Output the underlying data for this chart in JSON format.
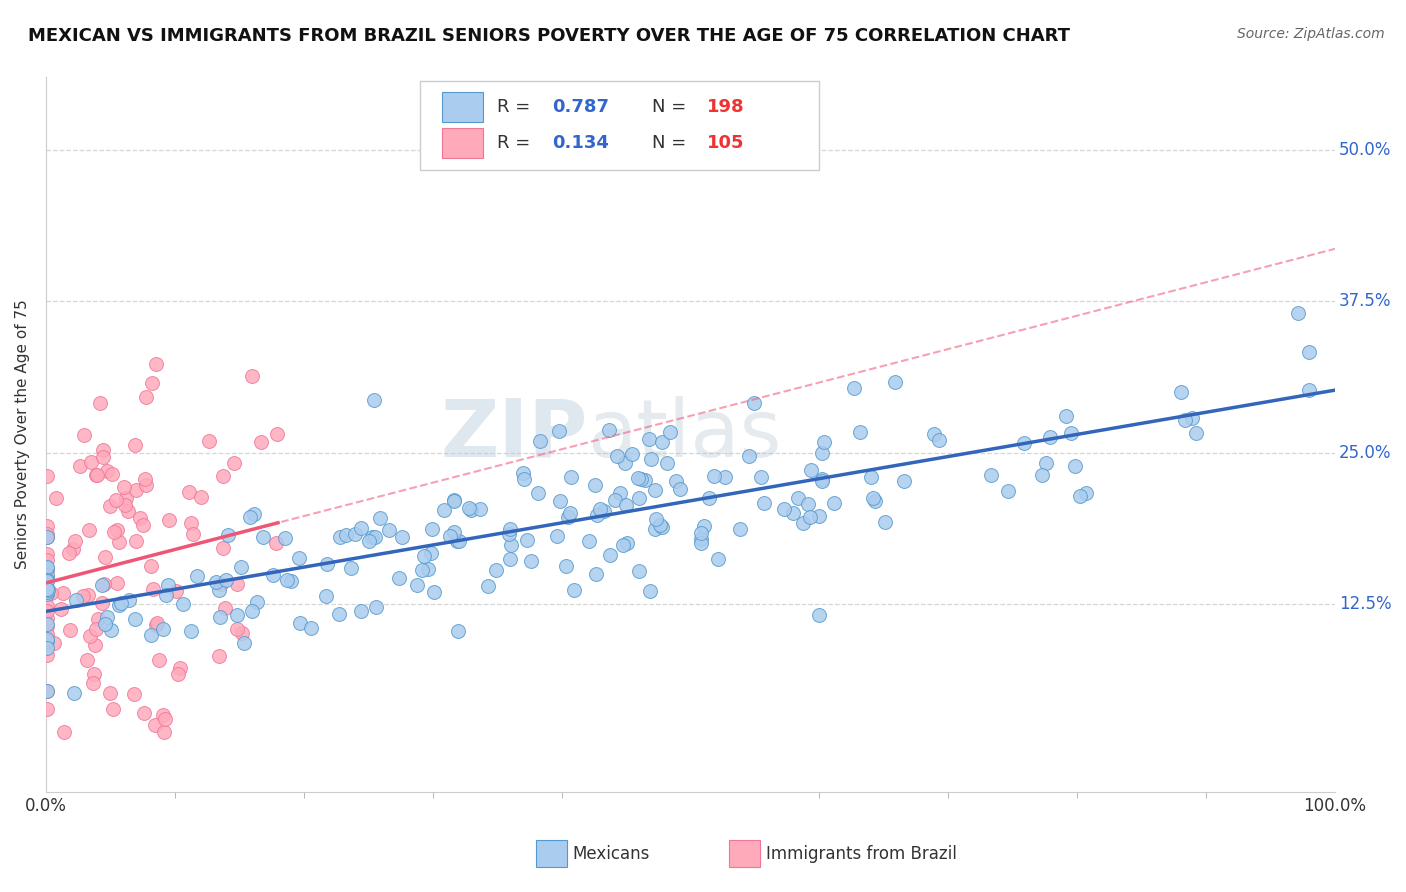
{
  "title": "MEXICAN VS IMMIGRANTS FROM BRAZIL SENIORS POVERTY OVER THE AGE OF 75 CORRELATION CHART",
  "source": "Source: ZipAtlas.com",
  "ylabel": "Seniors Poverty Over the Age of 75",
  "xlim": [
    0,
    1.0
  ],
  "ylim": [
    -0.03,
    0.56
  ],
  "ytick_labels": [
    "12.5%",
    "25.0%",
    "37.5%",
    "50.0%"
  ],
  "yticks": [
    0.125,
    0.25,
    0.375,
    0.5
  ],
  "legend_r1": "0.787",
  "legend_n1": "198",
  "legend_r2": "0.134",
  "legend_n2": "105",
  "legend_label1": "Mexicans",
  "legend_label2": "Immigrants from Brazil",
  "color_mexican": "#AACCEE",
  "color_brazil": "#FFAABB",
  "color_edge_mexican": "#5599CC",
  "color_edge_brazil": "#EE7799",
  "color_line_mexican": "#3366BB",
  "color_line_brazil": "#EE5577",
  "color_r_text": "#3366CC",
  "color_n_text": "#EE3333",
  "watermark_zip": "ZIP",
  "watermark_atlas": "atlas",
  "title_fontsize": 13,
  "axis_label_fontsize": 11,
  "tick_fontsize": 12,
  "n_mexican": 198,
  "n_brazil": 105,
  "r_mexican": 0.787,
  "r_brazil": 0.134,
  "background_color": "#FFFFFF",
  "grid_color": "#CCCCCC"
}
